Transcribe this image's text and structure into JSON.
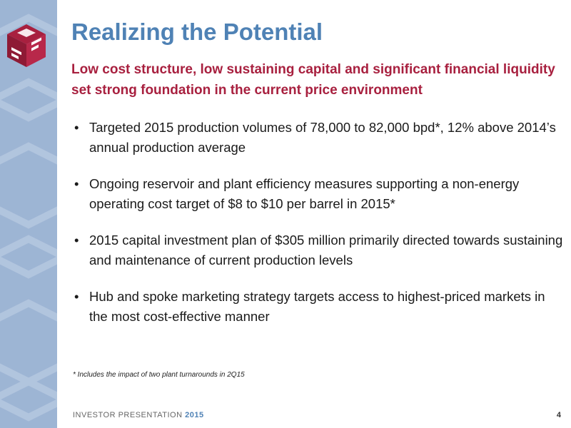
{
  "slide": {
    "title": "Realizing the Potential",
    "subtitle": "Low cost structure, low sustaining capital and significant financial liquidity set strong foundation in the current price environment",
    "bullets": [
      "Targeted 2015 production volumes of 78,000 to 82,000 bpd*, 12% above 2014’s annual production average",
      "Ongoing reservoir and plant efficiency measures supporting a non-energy operating cost target of $8 to $10 per barrel in 2015*",
      "2015 capital investment plan of $305 million primarily directed towards sustaining and maintenance of current production levels",
      "Hub and spoke marketing strategy targets access to highest-priced markets in the most cost-effective manner"
    ],
    "bullet_symbol": "•",
    "footnote": "* Includes the impact of two plant turnarounds in 2Q15",
    "page_number": "4"
  },
  "footer": {
    "label": "INVESTOR PRESENTATION",
    "year": "2015"
  },
  "colors": {
    "title": "#4f82b5",
    "subtitle": "#a8203f",
    "sidebar": "#9db5d4",
    "logo": "#a8203f"
  },
  "icons": {
    "logo": "meg-cube-logo-icon",
    "sidebar_pattern": "cube-pattern-background"
  }
}
